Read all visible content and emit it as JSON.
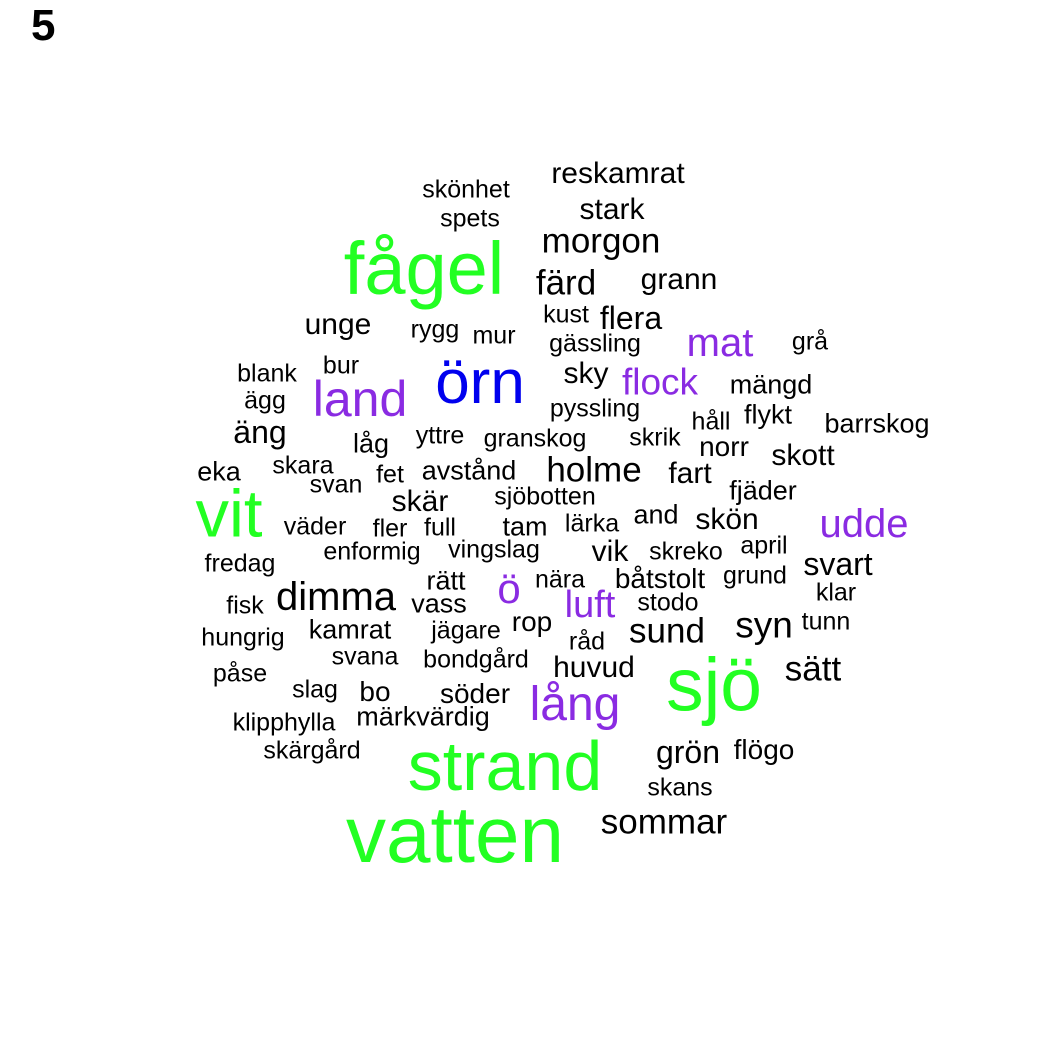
{
  "panel_label": "5",
  "colors": {
    "green": "#22ff22",
    "blue": "#0000ee",
    "purple": "#8a2be2",
    "black": "#000000"
  },
  "words": [
    {
      "text": "reskamrat",
      "color": "black"
    },
    {
      "text": "skönhet",
      "color": "black"
    },
    {
      "text": "stark",
      "color": "black"
    },
    {
      "text": "spets",
      "color": "black"
    },
    {
      "text": "morgon",
      "color": "black"
    },
    {
      "text": "fågel",
      "color": "green"
    },
    {
      "text": "färd",
      "color": "black"
    },
    {
      "text": "grann",
      "color": "black"
    },
    {
      "text": "unge",
      "color": "black"
    },
    {
      "text": "kust",
      "color": "black"
    },
    {
      "text": "flera",
      "color": "black"
    },
    {
      "text": "rygg",
      "color": "black"
    },
    {
      "text": "mur",
      "color": "black"
    },
    {
      "text": "mat",
      "color": "purple"
    },
    {
      "text": "grå",
      "color": "black"
    },
    {
      "text": "gässling",
      "color": "black"
    },
    {
      "text": "blank",
      "color": "black"
    },
    {
      "text": "bur",
      "color": "black"
    },
    {
      "text": "örn",
      "color": "blue"
    },
    {
      "text": "sky",
      "color": "black"
    },
    {
      "text": "flock",
      "color": "purple"
    },
    {
      "text": "mängd",
      "color": "black"
    },
    {
      "text": "land",
      "color": "purple"
    },
    {
      "text": "ägg",
      "color": "black"
    },
    {
      "text": "pyssling",
      "color": "black"
    },
    {
      "text": "håll",
      "color": "black"
    },
    {
      "text": "flykt",
      "color": "black"
    },
    {
      "text": "barrskog",
      "color": "black"
    },
    {
      "text": "äng",
      "color": "black"
    },
    {
      "text": "yttre",
      "color": "black"
    },
    {
      "text": "granskog",
      "color": "black"
    },
    {
      "text": "skrik",
      "color": "black"
    },
    {
      "text": "norr",
      "color": "black"
    },
    {
      "text": "låg",
      "color": "black"
    },
    {
      "text": "skott",
      "color": "black"
    },
    {
      "text": "eka",
      "color": "black"
    },
    {
      "text": "skara",
      "color": "black"
    },
    {
      "text": "avstånd",
      "color": "black"
    },
    {
      "text": "holme",
      "color": "black"
    },
    {
      "text": "fart",
      "color": "black"
    },
    {
      "text": "fet",
      "color": "black"
    },
    {
      "text": "svan",
      "color": "black"
    },
    {
      "text": "fjäder",
      "color": "black"
    },
    {
      "text": "sjöbotten",
      "color": "black"
    },
    {
      "text": "vit",
      "color": "green"
    },
    {
      "text": "skär",
      "color": "black"
    },
    {
      "text": "udde",
      "color": "purple"
    },
    {
      "text": "and",
      "color": "black"
    },
    {
      "text": "väder",
      "color": "black"
    },
    {
      "text": "fler",
      "color": "black"
    },
    {
      "text": "full",
      "color": "black"
    },
    {
      "text": "tam",
      "color": "black"
    },
    {
      "text": "lärka",
      "color": "black"
    },
    {
      "text": "skön",
      "color": "black"
    },
    {
      "text": "april",
      "color": "black"
    },
    {
      "text": "enformig",
      "color": "black"
    },
    {
      "text": "vingslag",
      "color": "black"
    },
    {
      "text": "vik",
      "color": "black"
    },
    {
      "text": "skreko",
      "color": "black"
    },
    {
      "text": "svart",
      "color": "black"
    },
    {
      "text": "fredag",
      "color": "black"
    },
    {
      "text": "rätt",
      "color": "black"
    },
    {
      "text": "ö",
      "color": "purple"
    },
    {
      "text": "nära",
      "color": "black"
    },
    {
      "text": "båtstolt",
      "color": "black"
    },
    {
      "text": "grund",
      "color": "black"
    },
    {
      "text": "dimma",
      "color": "black"
    },
    {
      "text": "klar",
      "color": "black"
    },
    {
      "text": "fisk",
      "color": "black"
    },
    {
      "text": "vass",
      "color": "black"
    },
    {
      "text": "luft",
      "color": "purple"
    },
    {
      "text": "stodo",
      "color": "black"
    },
    {
      "text": "rop",
      "color": "black"
    },
    {
      "text": "kamrat",
      "color": "black"
    },
    {
      "text": "jägare",
      "color": "black"
    },
    {
      "text": "sund",
      "color": "black"
    },
    {
      "text": "syn",
      "color": "black"
    },
    {
      "text": "tunn",
      "color": "black"
    },
    {
      "text": "hungrig",
      "color": "black"
    },
    {
      "text": "råd",
      "color": "black"
    },
    {
      "text": "svana",
      "color": "black"
    },
    {
      "text": "bondgård",
      "color": "black"
    },
    {
      "text": "huvud",
      "color": "black"
    },
    {
      "text": "sjö",
      "color": "green"
    },
    {
      "text": "sätt",
      "color": "black"
    },
    {
      "text": "påse",
      "color": "black"
    },
    {
      "text": "slag",
      "color": "black"
    },
    {
      "text": "bo",
      "color": "black"
    },
    {
      "text": "söder",
      "color": "black"
    },
    {
      "text": "lång",
      "color": "purple"
    },
    {
      "text": "klipphylla",
      "color": "black"
    },
    {
      "text": "märkvärdig",
      "color": "black"
    },
    {
      "text": "skärgård",
      "color": "black"
    },
    {
      "text": "strand",
      "color": "green"
    },
    {
      "text": "grön",
      "color": "black"
    },
    {
      "text": "flögo",
      "color": "black"
    },
    {
      "text": "skans",
      "color": "black"
    },
    {
      "text": "vatten",
      "color": "green"
    },
    {
      "text": "sommar",
      "color": "black"
    }
  ]
}
